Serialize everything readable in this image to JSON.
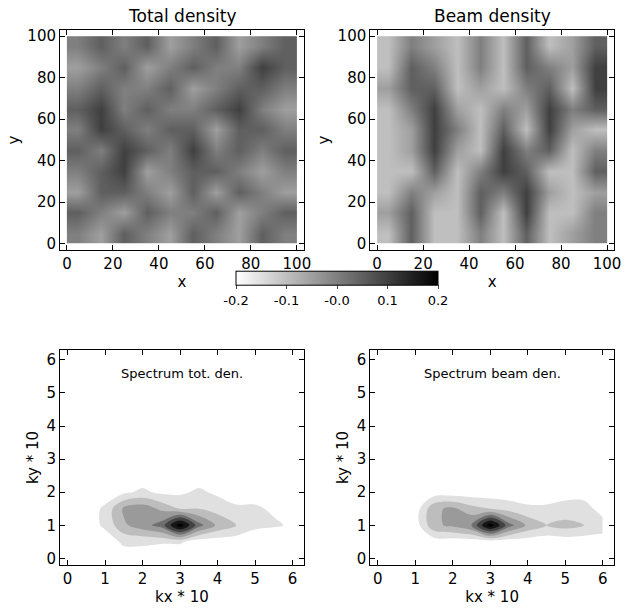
{
  "chart_data": [
    {
      "type": "heatmap",
      "title": "Total density",
      "xlabel": "x",
      "ylabel": "y",
      "x": [
        5,
        15,
        25,
        35,
        45,
        55,
        65,
        75,
        85,
        95
      ],
      "y": [
        5,
        15,
        25,
        35,
        45,
        55,
        65,
        75,
        85,
        95
      ],
      "z": [
        [
          0.0,
          -0.05,
          0.05,
          0.0,
          -0.05,
          0.05,
          0.0,
          -0.05,
          0.05,
          0.0
        ],
        [
          0.05,
          0.0,
          -0.05,
          0.05,
          0.0,
          0.0,
          0.05,
          -0.05,
          0.0,
          0.05
        ],
        [
          -0.05,
          0.05,
          0.05,
          0.0,
          -0.05,
          0.05,
          -0.05,
          0.05,
          0.0,
          -0.05
        ],
        [
          0.0,
          0.05,
          0.1,
          -0.05,
          0.0,
          0.05,
          0.05,
          0.0,
          -0.05,
          0.0
        ],
        [
          0.05,
          0.0,
          0.1,
          0.05,
          0.0,
          0.1,
          0.0,
          0.05,
          0.0,
          0.05
        ],
        [
          0.0,
          0.1,
          0.05,
          0.0,
          0.05,
          0.05,
          -0.05,
          0.05,
          0.05,
          0.0
        ],
        [
          0.05,
          0.1,
          0.0,
          0.05,
          0.0,
          0.0,
          0.05,
          0.1,
          0.0,
          -0.05
        ],
        [
          0.0,
          0.05,
          0.0,
          0.0,
          0.05,
          -0.05,
          0.0,
          0.05,
          0.05,
          0.0
        ],
        [
          -0.05,
          0.0,
          0.05,
          -0.05,
          0.0,
          0.05,
          0.0,
          0.0,
          0.1,
          0.05
        ],
        [
          0.0,
          0.05,
          0.0,
          0.05,
          -0.05,
          0.0,
          0.05,
          -0.05,
          0.0,
          0.05
        ]
      ],
      "zlim": [
        -0.2,
        0.2
      ],
      "colorbar_ticks": [
        -0.2,
        -0.1,
        {
          "value": 0,
          "label": "-0.0"
        },
        0.1,
        0.2
      ],
      "xlim": [
        -3,
        103
      ],
      "ylim": [
        -3,
        103
      ],
      "xticks": [
        0,
        20,
        40,
        60,
        80,
        100
      ],
      "yticks": [
        0,
        20,
        40,
        60,
        80,
        100
      ]
    },
    {
      "type": "heatmap",
      "title": "Beam density",
      "xlabel": "x",
      "ylabel": "y",
      "x": [
        5,
        15,
        25,
        35,
        45,
        55,
        65,
        75,
        85,
        95
      ],
      "y": [
        5,
        15,
        25,
        35,
        45,
        55,
        65,
        75,
        85,
        95
      ],
      "z": [
        [
          -0.1,
          0.05,
          -0.1,
          -0.1,
          0.0,
          -0.1,
          0.05,
          -0.1,
          -0.05,
          0.0
        ],
        [
          -0.05,
          0.05,
          -0.1,
          -0.1,
          0.05,
          -0.1,
          0.1,
          -0.1,
          -0.1,
          0.0
        ],
        [
          -0.1,
          0.0,
          -0.05,
          -0.1,
          0.05,
          0.0,
          0.1,
          -0.05,
          -0.1,
          -0.05
        ],
        [
          -0.1,
          -0.1,
          0.05,
          -0.1,
          0.0,
          0.1,
          0.05,
          -0.1,
          -0.1,
          0.05
        ],
        [
          -0.1,
          -0.05,
          0.1,
          -0.05,
          -0.1,
          0.1,
          0.0,
          0.05,
          -0.1,
          0.0
        ],
        [
          -0.1,
          -0.05,
          0.1,
          0.0,
          -0.1,
          0.05,
          -0.1,
          0.1,
          -0.05,
          -0.1
        ],
        [
          -0.1,
          0.0,
          0.1,
          -0.05,
          -0.1,
          0.0,
          -0.05,
          0.1,
          0.0,
          0.05
        ],
        [
          -0.05,
          0.05,
          0.05,
          -0.1,
          -0.05,
          -0.1,
          0.0,
          0.05,
          -0.1,
          0.1
        ],
        [
          -0.1,
          0.05,
          0.0,
          -0.1,
          0.0,
          -0.1,
          0.05,
          0.0,
          -0.05,
          0.1
        ],
        [
          -0.1,
          0.0,
          -0.05,
          -0.1,
          0.0,
          -0.1,
          0.05,
          -0.1,
          -0.05,
          0.05
        ]
      ],
      "zlim": [
        -0.2,
        0.2
      ],
      "xlim": [
        -3,
        103
      ],
      "ylim": [
        -3,
        103
      ],
      "xticks": [
        0,
        20,
        40,
        60,
        80,
        100
      ],
      "yticks": [
        0,
        20,
        40,
        60,
        80,
        100
      ]
    },
    {
      "type": "contour",
      "title": "Spectrum tot. den.",
      "xlabel": "kx * 10",
      "ylabel": "ky * 10",
      "x": [
        0,
        0.5,
        1,
        1.5,
        2,
        2.5,
        3,
        3.5,
        4,
        4.5,
        5,
        5.5,
        6
      ],
      "y": [
        0,
        0.5,
        1,
        1.5,
        2,
        2.5,
        3,
        3.5,
        4,
        4.5,
        5,
        5.5,
        6
      ],
      "z": [
        [
          0,
          0,
          0,
          0.1,
          0.1,
          0,
          0,
          0,
          0,
          0,
          0,
          0,
          0
        ],
        [
          0,
          0,
          0.1,
          0.2,
          0.2,
          0.2,
          0.2,
          0.1,
          0.1,
          0.1,
          0.1,
          0,
          0
        ],
        [
          0,
          0.1,
          0.2,
          0.4,
          0.5,
          0.6,
          1.0,
          0.6,
          0.4,
          0.3,
          0.2,
          0.2,
          0.15
        ],
        [
          0,
          0.1,
          0.2,
          0.45,
          0.5,
          0.4,
          0.3,
          0.3,
          0.25,
          0.2,
          0.2,
          0.15,
          0.1
        ],
        [
          0,
          0,
          0.1,
          0.15,
          0.2,
          0.15,
          0.15,
          0.2,
          0.15,
          0.1,
          0.1,
          0.1,
          0
        ],
        [
          0,
          0.1,
          0.1,
          0.1,
          0.1,
          0.15,
          0.1,
          0.1,
          0.1,
          0.1,
          0.15,
          0.1,
          0
        ],
        [
          0.1,
          0.1,
          0.1,
          0,
          0,
          0.1,
          0.15,
          0.15,
          0.1,
          0,
          0.1,
          0.1,
          0.1
        ],
        [
          0.1,
          0,
          0,
          0,
          0,
          0,
          0.1,
          0.1,
          0,
          0,
          0,
          0,
          0
        ],
        [
          0.1,
          0.15,
          0.1,
          0,
          0,
          0,
          0,
          0,
          0,
          0,
          0,
          0,
          0
        ],
        [
          0,
          0.1,
          0,
          0,
          0,
          0,
          0,
          0.1,
          0.1,
          0,
          0,
          0,
          0
        ],
        [
          0.1,
          0.1,
          0,
          0,
          0,
          0,
          0,
          0,
          0,
          0,
          0,
          0,
          0
        ],
        [
          0.1,
          0,
          0,
          0,
          0,
          0,
          0,
          0,
          0,
          0,
          0,
          0,
          0
        ],
        [
          0.15,
          0.1,
          0,
          0,
          0,
          0,
          0,
          0,
          0,
          0,
          0,
          0,
          0
        ]
      ],
      "zlim": [
        0,
        1
      ],
      "xlim": [
        -0.2,
        6.3
      ],
      "ylim": [
        -0.2,
        6.3
      ],
      "xticks": [
        0,
        1,
        2,
        3,
        4,
        5,
        6
      ],
      "yticks": [
        0,
        1,
        2,
        3,
        4,
        5,
        6
      ]
    },
    {
      "type": "contour",
      "title": "Spectrum beam den.",
      "xlabel": "kx * 10",
      "ylabel": "ky * 10",
      "x": [
        0,
        0.5,
        1,
        1.5,
        2,
        2.5,
        3,
        3.5,
        4,
        4.5,
        5,
        5.5,
        6
      ],
      "y": [
        0,
        0.5,
        1,
        1.5,
        2,
        2.5,
        3,
        3.5,
        4,
        4.5,
        5,
        5.5,
        6
      ],
      "z": [
        [
          0,
          0,
          0,
          0,
          0,
          0,
          0,
          0,
          0,
          0,
          0,
          0.1,
          0.1
        ],
        [
          0,
          0,
          0,
          0.1,
          0.1,
          0.1,
          0.1,
          0.1,
          0.1,
          0.1,
          0.1,
          0.1,
          0.15
        ],
        [
          0,
          0,
          0.1,
          0.4,
          0.45,
          0.55,
          1.0,
          0.6,
          0.4,
          0.3,
          0.35,
          0.3,
          0.2
        ],
        [
          0,
          0,
          0.1,
          0.4,
          0.45,
          0.35,
          0.3,
          0.25,
          0.2,
          0.2,
          0.2,
          0.2,
          0.15
        ],
        [
          0,
          0,
          0,
          0.1,
          0.1,
          0.1,
          0.1,
          0.1,
          0.1,
          0.1,
          0.15,
          0.15,
          0.15
        ],
        [
          0,
          0,
          0,
          0,
          0,
          0,
          0,
          0.1,
          0.1,
          0,
          0.1,
          0.15,
          0.15
        ],
        [
          0,
          0,
          0,
          0,
          0,
          0,
          0,
          0,
          0,
          0,
          0.1,
          0.1,
          0.15
        ],
        [
          0,
          0,
          0,
          0,
          0,
          0,
          0,
          0,
          0,
          0,
          0,
          0,
          0.1
        ],
        [
          0,
          0,
          0,
          0,
          0,
          0,
          0,
          0,
          0,
          0,
          0,
          0,
          0
        ],
        [
          0,
          0,
          0,
          0,
          0,
          0,
          0,
          0,
          0,
          0,
          0,
          0,
          0
        ],
        [
          0,
          0,
          0,
          0,
          0,
          0,
          0,
          0,
          0,
          0,
          0,
          0,
          0
        ],
        [
          0,
          0,
          0,
          0,
          0,
          0,
          0,
          0,
          0,
          0,
          0,
          0,
          0
        ],
        [
          0,
          0,
          0,
          0,
          0,
          0,
          0,
          0,
          0,
          0,
          0,
          0,
          0
        ]
      ],
      "zlim": [
        0,
        1
      ],
      "xlim": [
        -0.2,
        6.3
      ],
      "ylim": [
        -0.2,
        6.3
      ],
      "xticks": [
        0,
        1,
        2,
        3,
        4,
        5,
        6
      ],
      "yticks": [
        0,
        1,
        2,
        3,
        4,
        5,
        6
      ]
    }
  ]
}
